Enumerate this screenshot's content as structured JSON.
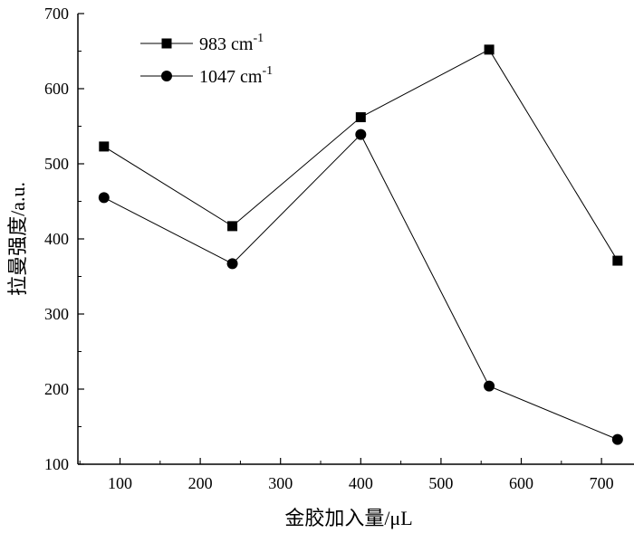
{
  "chart_data": {
    "type": "line",
    "title": "",
    "xlabel": "金胶加入量/μL",
    "ylabel": "拉曼强度/a.u.",
    "xlim": [
      80,
      720
    ],
    "ylim": [
      100,
      700
    ],
    "xticks": [
      100,
      200,
      300,
      400,
      500,
      600,
      700
    ],
    "yticks": [
      100,
      200,
      300,
      400,
      500,
      600,
      700
    ],
    "grid": false,
    "legend_position": "top-left",
    "x": [
      80,
      240,
      400,
      560,
      720
    ],
    "series": [
      {
        "name": "983 cm",
        "name_sup": "-1",
        "marker": "square",
        "color": "#000000",
        "values": [
          523,
          417,
          562,
          652,
          371
        ]
      },
      {
        "name": "1047 cm",
        "name_sup": "-1",
        "marker": "circle",
        "color": "#000000",
        "values": [
          455,
          367,
          539,
          204,
          133
        ]
      }
    ]
  }
}
